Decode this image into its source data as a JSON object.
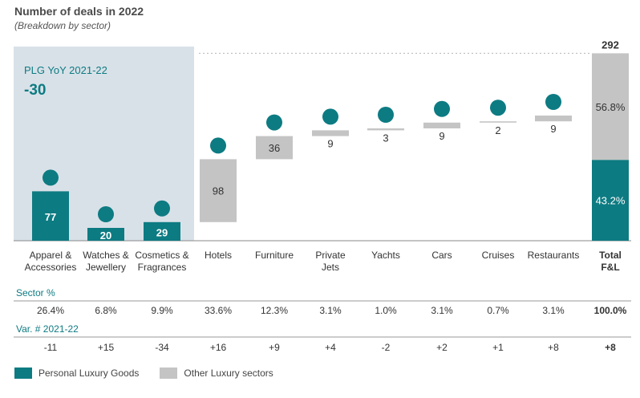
{
  "title": "Number of deals in 2022",
  "subtitle": "(Breakdown by sector)",
  "colors": {
    "plg": "#0d7b82",
    "other": "#c4c4c4",
    "panel": "#d9e1e8",
    "accent": "#0d7b82",
    "text": "#333333"
  },
  "chart_data": {
    "type": "bar",
    "subtype": "waterfall",
    "categories": [
      "Apparel &\nAccessories",
      "Watches &\nJewellery",
      "Cosmetics &\nFragrances",
      "Hotels",
      "Furniture",
      "Private\nJets",
      "Yachts",
      "Cars",
      "Cruises",
      "Restaurants",
      "Total\nF&L"
    ],
    "groups": [
      "plg",
      "plg",
      "plg",
      "other",
      "other",
      "other",
      "other",
      "other",
      "other",
      "other",
      "total"
    ],
    "values": [
      77,
      20,
      29,
      98,
      36,
      9,
      3,
      9,
      2,
      9,
      292
    ],
    "icons": [
      "tie-icon",
      "diamond-icon",
      "flask-icon",
      "hotel-icon",
      "sofa-icon",
      "plane-icon",
      "sailboat-icon",
      "car-icon",
      "ship-icon",
      "cutlery-icon",
      ""
    ],
    "total_split": [
      {
        "label": "56.8%",
        "value": 166,
        "group": "other"
      },
      {
        "label": "43.2%",
        "value": 126,
        "group": "plg"
      }
    ],
    "panel": {
      "title": "PLG YoY 2021-22",
      "value": "-30"
    },
    "legend": [
      {
        "label": "Personal Luxury Goods",
        "group": "plg"
      },
      {
        "label": "Other Luxury sectors",
        "group": "other"
      }
    ]
  },
  "table": {
    "sector_pct_label": "Sector %",
    "sector_pct": [
      "26.4%",
      "6.8%",
      "9.9%",
      "33.6%",
      "12.3%",
      "3.1%",
      "1.0%",
      "3.1%",
      "0.7%",
      "3.1%",
      "100.0%"
    ],
    "var_label": "Var. # 2021-22",
    "var": [
      "-11",
      "+15",
      "-34",
      "+16",
      "+9",
      "+4",
      "-2",
      "+2",
      "+1",
      "+8",
      "+8"
    ]
  }
}
